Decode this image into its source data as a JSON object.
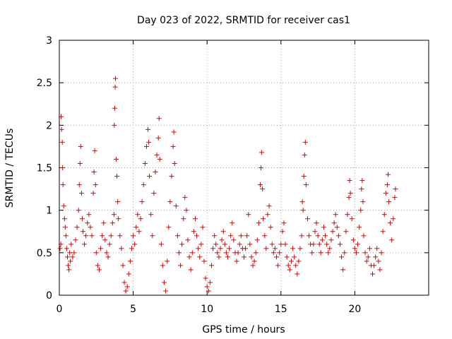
{
  "chart_data": {
    "type": "scatter",
    "title": "Day 023 of 2022, SRMTID for receiver cas1",
    "xlabel": "GPS time / hours",
    "ylabel": "SRMTID / TECUs",
    "xlim": [
      0,
      25
    ],
    "ylim": [
      0,
      3
    ],
    "xticks": [
      0,
      5,
      10,
      15,
      20
    ],
    "xtick_labels": [
      "0",
      "5",
      "10",
      "15",
      "20"
    ],
    "yticks": [
      0,
      0.5,
      1,
      1.5,
      2,
      2.5,
      3
    ],
    "ytick_labels": [
      "0",
      "0.5",
      "1",
      "1.5",
      "2",
      "2.5",
      "3"
    ],
    "grid": true,
    "marker": "+",
    "marker_color": "#dd0000",
    "series": [
      {
        "name": "SRMTID",
        "points": [
          [
            0.05,
            0.55
          ],
          [
            0.1,
            0.6
          ],
          [
            0.12,
            2.1
          ],
          [
            0.15,
            1.95
          ],
          [
            0.2,
            1.8
          ],
          [
            0.22,
            1.5
          ],
          [
            0.25,
            1.3
          ],
          [
            0.3,
            1.05
          ],
          [
            0.35,
            0.9
          ],
          [
            0.4,
            0.8
          ],
          [
            0.45,
            0.7
          ],
          [
            0.5,
            0.55
          ],
          [
            0.55,
            0.45
          ],
          [
            0.6,
            0.35
          ],
          [
            0.65,
            0.3
          ],
          [
            0.7,
            0.5
          ],
          [
            0.75,
            0.4
          ],
          [
            0.8,
            0.6
          ],
          [
            0.9,
            0.45
          ],
          [
            1.0,
            0.5
          ],
          [
            1.1,
            0.65
          ],
          [
            1.2,
            0.8
          ],
          [
            1.3,
            1.0
          ],
          [
            1.35,
            1.3
          ],
          [
            1.4,
            1.55
          ],
          [
            1.45,
            1.75
          ],
          [
            1.5,
            1.2
          ],
          [
            1.55,
            0.9
          ],
          [
            1.6,
            0.75
          ],
          [
            1.7,
            0.6
          ],
          [
            1.8,
            0.7
          ],
          [
            1.9,
            0.85
          ],
          [
            2.0,
            0.95
          ],
          [
            2.1,
            0.8
          ],
          [
            2.2,
            0.7
          ],
          [
            2.3,
            1.2
          ],
          [
            2.35,
            1.45
          ],
          [
            2.4,
            1.7
          ],
          [
            2.45,
            1.3
          ],
          [
            2.5,
            0.5
          ],
          [
            2.6,
            0.35
          ],
          [
            2.7,
            0.3
          ],
          [
            2.8,
            0.55
          ],
          [
            2.9,
            0.7
          ],
          [
            3.0,
            0.85
          ],
          [
            3.1,
            0.65
          ],
          [
            3.2,
            0.5
          ],
          [
            3.3,
            0.45
          ],
          [
            3.4,
            0.6
          ],
          [
            3.5,
            0.7
          ],
          [
            3.6,
            0.85
          ],
          [
            3.7,
            0.95
          ],
          [
            3.72,
            2.0
          ],
          [
            3.75,
            2.2
          ],
          [
            3.78,
            2.45
          ],
          [
            3.8,
            2.55
          ],
          [
            3.85,
            1.6
          ],
          [
            3.9,
            1.4
          ],
          [
            3.95,
            1.1
          ],
          [
            4.0,
            0.9
          ],
          [
            4.1,
            0.7
          ],
          [
            4.2,
            0.55
          ],
          [
            4.3,
            0.35
          ],
          [
            4.4,
            0.15
          ],
          [
            4.5,
            0.05
          ],
          [
            4.6,
            0.1
          ],
          [
            4.7,
            0.25
          ],
          [
            4.8,
            0.4
          ],
          [
            4.9,
            0.55
          ],
          [
            5.0,
            0.7
          ],
          [
            5.1,
            0.6
          ],
          [
            5.2,
            0.8
          ],
          [
            5.3,
            0.95
          ],
          [
            5.4,
            0.75
          ],
          [
            5.5,
            0.9
          ],
          [
            5.6,
            1.1
          ],
          [
            5.7,
            1.3
          ],
          [
            5.8,
            1.55
          ],
          [
            5.9,
            1.75
          ],
          [
            6.0,
            1.95
          ],
          [
            6.05,
            1.8
          ],
          [
            6.1,
            1.4
          ],
          [
            6.2,
            0.95
          ],
          [
            6.3,
            0.7
          ],
          [
            6.4,
            1.2
          ],
          [
            6.5,
            1.45
          ],
          [
            6.6,
            1.65
          ],
          [
            6.7,
            1.85
          ],
          [
            6.75,
            2.08
          ],
          [
            6.8,
            1.6
          ],
          [
            6.9,
            0.6
          ],
          [
            7.0,
            0.35
          ],
          [
            7.1,
            0.15
          ],
          [
            7.2,
            0.05
          ],
          [
            7.3,
            0.4
          ],
          [
            7.4,
            0.8
          ],
          [
            7.5,
            1.1
          ],
          [
            7.6,
            1.4
          ],
          [
            7.7,
            1.75
          ],
          [
            7.75,
            1.92
          ],
          [
            7.8,
            1.55
          ],
          [
            7.9,
            1.05
          ],
          [
            8.0,
            0.7
          ],
          [
            8.1,
            0.5
          ],
          [
            8.2,
            0.35
          ],
          [
            8.3,
            0.6
          ],
          [
            8.4,
            0.9
          ],
          [
            8.5,
            1.15
          ],
          [
            8.6,
            1.0
          ],
          [
            8.7,
            0.65
          ],
          [
            8.8,
            0.45
          ],
          [
            8.9,
            0.3
          ],
          [
            9.0,
            0.5
          ],
          [
            9.1,
            0.75
          ],
          [
            9.2,
            0.9
          ],
          [
            9.3,
            0.7
          ],
          [
            9.4,
            0.55
          ],
          [
            9.5,
            0.45
          ],
          [
            9.6,
            0.6
          ],
          [
            9.7,
            0.8
          ],
          [
            9.8,
            0.4
          ],
          [
            9.9,
            0.2
          ],
          [
            10.0,
            0.1
          ],
          [
            10.1,
            0.05
          ],
          [
            10.2,
            0.15
          ],
          [
            10.3,
            0.35
          ],
          [
            10.4,
            0.55
          ],
          [
            10.5,
            0.7
          ],
          [
            10.6,
            0.6
          ],
          [
            10.7,
            0.5
          ],
          [
            10.8,
            0.45
          ],
          [
            10.9,
            0.55
          ],
          [
            11.0,
            0.65
          ],
          [
            11.1,
            0.75
          ],
          [
            11.2,
            0.6
          ],
          [
            11.3,
            0.5
          ],
          [
            11.4,
            0.45
          ],
          [
            11.5,
            0.55
          ],
          [
            11.6,
            0.7
          ],
          [
            11.7,
            0.85
          ],
          [
            11.8,
            0.65
          ],
          [
            11.9,
            0.5
          ],
          [
            12.0,
            0.4
          ],
          [
            12.1,
            0.5
          ],
          [
            12.2,
            0.6
          ],
          [
            12.3,
            0.7
          ],
          [
            12.4,
            0.55
          ],
          [
            12.5,
            0.45
          ],
          [
            12.6,
            0.55
          ],
          [
            12.7,
            0.7
          ],
          [
            12.8,
            0.95
          ],
          [
            12.9,
            0.6
          ],
          [
            13.0,
            0.45
          ],
          [
            13.1,
            0.35
          ],
          [
            13.2,
            0.4
          ],
          [
            13.3,
            0.5
          ],
          [
            13.4,
            0.65
          ],
          [
            13.5,
            0.85
          ],
          [
            13.6,
            1.3
          ],
          [
            13.65,
            1.5
          ],
          [
            13.7,
            1.68
          ],
          [
            13.75,
            1.25
          ],
          [
            13.8,
            0.9
          ],
          [
            13.9,
            0.7
          ],
          [
            14.0,
            0.55
          ],
          [
            14.1,
            0.95
          ],
          [
            14.2,
            1.05
          ],
          [
            14.3,
            0.8
          ],
          [
            14.4,
            0.6
          ],
          [
            14.5,
            0.5
          ],
          [
            14.6,
            0.55
          ],
          [
            14.7,
            0.45
          ],
          [
            14.8,
            0.35
          ],
          [
            14.9,
            0.5
          ],
          [
            15.0,
            0.6
          ],
          [
            15.1,
            0.75
          ],
          [
            15.2,
            0.85
          ],
          [
            15.3,
            0.6
          ],
          [
            15.4,
            0.45
          ],
          [
            15.5,
            0.35
          ],
          [
            15.6,
            0.3
          ],
          [
            15.7,
            0.4
          ],
          [
            15.8,
            0.55
          ],
          [
            15.9,
            0.45
          ],
          [
            16.0,
            0.35
          ],
          [
            16.1,
            0.25
          ],
          [
            16.2,
            0.4
          ],
          [
            16.3,
            0.55
          ],
          [
            16.4,
            0.7
          ],
          [
            16.45,
            1.1
          ],
          [
            16.5,
            1.0
          ],
          [
            16.55,
            1.4
          ],
          [
            16.6,
            1.65
          ],
          [
            16.65,
            1.8
          ],
          [
            16.7,
            1.3
          ],
          [
            16.8,
            0.9
          ],
          [
            16.9,
            0.7
          ],
          [
            17.0,
            0.6
          ],
          [
            17.1,
            0.5
          ],
          [
            17.2,
            0.6
          ],
          [
            17.3,
            0.75
          ],
          [
            17.4,
            0.85
          ],
          [
            17.5,
            0.7
          ],
          [
            17.6,
            0.6
          ],
          [
            17.7,
            0.5
          ],
          [
            17.8,
            0.65
          ],
          [
            17.9,
            0.8
          ],
          [
            18.0,
            0.7
          ],
          [
            18.1,
            0.6
          ],
          [
            18.2,
            0.5
          ],
          [
            18.3,
            0.55
          ],
          [
            18.4,
            0.65
          ],
          [
            18.5,
            0.75
          ],
          [
            18.6,
            0.85
          ],
          [
            18.7,
            0.95
          ],
          [
            18.8,
            0.8
          ],
          [
            18.9,
            0.7
          ],
          [
            19.0,
            0.6
          ],
          [
            19.1,
            0.45
          ],
          [
            19.2,
            0.3
          ],
          [
            19.3,
            0.5
          ],
          [
            19.4,
            0.75
          ],
          [
            19.5,
            0.95
          ],
          [
            19.6,
            1.15
          ],
          [
            19.65,
            1.35
          ],
          [
            19.7,
            1.2
          ],
          [
            19.8,
            0.9
          ],
          [
            19.9,
            0.65
          ],
          [
            20.0,
            0.55
          ],
          [
            20.1,
            0.5
          ],
          [
            20.2,
            0.6
          ],
          [
            20.3,
            0.8
          ],
          [
            20.4,
            1.0
          ],
          [
            20.45,
            1.25
          ],
          [
            20.5,
            1.35
          ],
          [
            20.55,
            1.1
          ],
          [
            20.6,
            0.7
          ],
          [
            20.7,
            0.5
          ],
          [
            20.8,
            0.4
          ],
          [
            20.9,
            0.45
          ],
          [
            21.0,
            0.55
          ],
          [
            21.1,
            0.35
          ],
          [
            21.2,
            0.25
          ],
          [
            21.3,
            0.35
          ],
          [
            21.4,
            0.45
          ],
          [
            21.5,
            0.55
          ],
          [
            21.6,
            0.4
          ],
          [
            21.7,
            0.3
          ],
          [
            21.8,
            0.5
          ],
          [
            21.9,
            0.75
          ],
          [
            22.0,
            0.95
          ],
          [
            22.1,
            1.2
          ],
          [
            22.2,
            1.3
          ],
          [
            22.25,
            1.42
          ],
          [
            22.3,
            1.1
          ],
          [
            22.4,
            0.85
          ],
          [
            22.5,
            0.65
          ],
          [
            22.6,
            0.9
          ],
          [
            22.7,
            1.15
          ],
          [
            22.75,
            1.25
          ]
        ]
      }
    ]
  }
}
